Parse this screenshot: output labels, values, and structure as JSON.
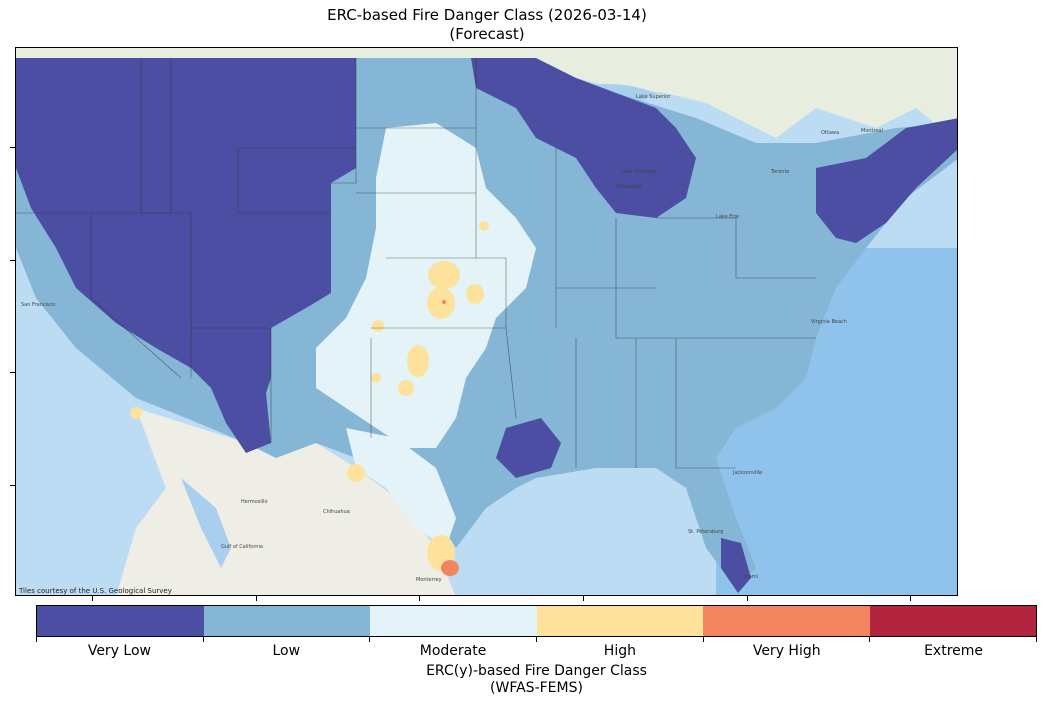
{
  "title": {
    "line1": "ERC-based Fire Danger Class (2026-03-14)",
    "line2": "(Forecast)"
  },
  "map": {
    "attribution": "Tiles courtesy of the U.S. Geological Survey",
    "place_labels": {
      "hermosillo": "Hermosillo",
      "chihuahua": "Chihuahua",
      "monterrey": "Monterrey",
      "gulf_california": "Gulf of California",
      "milwaukee": "Milwaukee",
      "lake_michigan": "Lake Michigan",
      "lake_erie": "Lake Erie",
      "ottawa": "Ottawa",
      "montreal": "Montreal",
      "toronto": "Toronto",
      "lake_superior": "Lake Superior",
      "jacksonville": "Jacksonville",
      "st_petersburg": "St. Petersburg",
      "miami": "Miami",
      "virginia_beach": "Virginia Beach",
      "san_francisco": "San Francisco"
    }
  },
  "colors": {
    "very_low": "#4b4ea3",
    "low": "#85b6d6",
    "moderate": "#e4f3f7",
    "high": "#fde29b",
    "very_high": "#f2845f",
    "extreme": "#b3253f",
    "ocean": "#a8cfee",
    "land": "#eef0e6",
    "mexico": "#efeee6"
  },
  "legend": {
    "classes": [
      {
        "label": "Very Low",
        "color": "#4b4ea3"
      },
      {
        "label": "Low",
        "color": "#85b6d6"
      },
      {
        "label": "Moderate",
        "color": "#e4f3f7"
      },
      {
        "label": "High",
        "color": "#fde29b"
      },
      {
        "label": "Very High",
        "color": "#f2845f"
      },
      {
        "label": "Extreme",
        "color": "#b3253f"
      }
    ],
    "title_line1": "ERC(y)-based Fire Danger Class",
    "title_line2": "(WFAS-FEMS)"
  }
}
